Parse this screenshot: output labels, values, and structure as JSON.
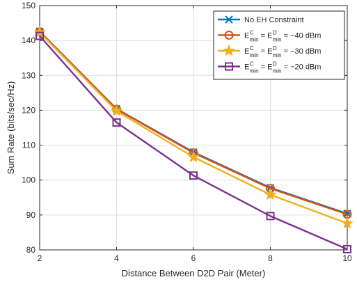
{
  "chart_data": {
    "type": "line",
    "title": "",
    "xlabel": "Distance Between D2D Pair (Meter)",
    "ylabel": "Sum Rate (bits/sec/Hz)",
    "xlim": [
      2,
      10
    ],
    "ylim": [
      80,
      150
    ],
    "x": [
      2,
      4,
      6,
      8,
      10
    ],
    "x_ticks": [
      2,
      4,
      6,
      8,
      10
    ],
    "y_ticks": [
      80,
      90,
      100,
      110,
      120,
      130,
      140,
      150
    ],
    "grid": true,
    "legend_position": "top-right",
    "series": [
      {
        "name": "No EH Constraint",
        "legend": {
          "text": "No EH Constraint"
        },
        "values": [
          142.6,
          120.4,
          108.0,
          97.8,
          90.4
        ],
        "color": "#0072BD",
        "marker": "x-star"
      },
      {
        "name": "E^C_min = E^D_min = -40 dBm",
        "legend": {
          "E": "E",
          "sup1": "C",
          "sub1": "min",
          "eq": "=",
          "sup2": "D",
          "sub2": "min",
          "value": "= −40 dBm"
        },
        "values": [
          142.5,
          120.3,
          107.8,
          97.6,
          90.2
        ],
        "color": "#D95319",
        "marker": "circle"
      },
      {
        "name": "E^C_min = E^D_min = -30 dBm",
        "legend": {
          "E": "E",
          "sup1": "C",
          "sub1": "min",
          "eq": "=",
          "sup2": "D",
          "sub2": "min",
          "value": "= −30 dBm"
        },
        "values": [
          142.3,
          119.8,
          106.6,
          95.8,
          87.6
        ],
        "color": "#EDB120",
        "marker": "star"
      },
      {
        "name": "E^C_min = E^D_min = -20 dBm",
        "legend": {
          "E": "E",
          "sup1": "C",
          "sub1": "min",
          "eq": "=",
          "sup2": "D",
          "sub2": "min",
          "value": "= −20 dBm"
        },
        "values": [
          141.3,
          116.5,
          101.3,
          89.7,
          80.2
        ],
        "color": "#7E2F8E",
        "marker": "square"
      }
    ]
  }
}
